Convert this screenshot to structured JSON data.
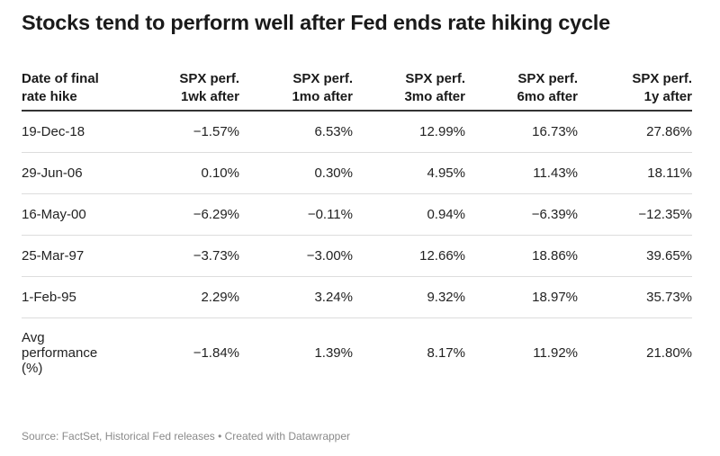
{
  "title": "Stocks tend to perform well after Fed ends rate hiking cycle",
  "source": "Source: FactSet, Historical Fed releases • Created with Datawrapper",
  "chart_data": {
    "type": "table",
    "columns": [
      [
        "Date of final",
        "rate hike"
      ],
      [
        "SPX perf.",
        "1wk after"
      ],
      [
        "SPX perf.",
        "1mo after"
      ],
      [
        "SPX perf.",
        "3mo after"
      ],
      [
        "SPX perf.",
        "6mo after"
      ],
      [
        "SPX perf.",
        "1y after"
      ]
    ],
    "rows": [
      [
        "19-Dec-18",
        "−1.57%",
        "6.53%",
        "12.99%",
        "16.73%",
        "27.86%"
      ],
      [
        "29-Jun-06",
        "0.10%",
        "0.30%",
        "4.95%",
        "11.43%",
        "18.11%"
      ],
      [
        "16-May-00",
        "−6.29%",
        "−0.11%",
        "0.94%",
        "−6.39%",
        "−12.35%"
      ],
      [
        "25-Mar-97",
        "−3.73%",
        "−3.00%",
        "12.66%",
        "18.86%",
        "39.65%"
      ],
      [
        "1-Feb-95",
        "2.29%",
        "3.24%",
        "9.32%",
        "18.97%",
        "35.73%"
      ]
    ],
    "summary_row": {
      "label": [
        "Avg",
        "performance",
        "(%)"
      ],
      "values": [
        "−1.84%",
        "1.39%",
        "8.17%",
        "11.92%",
        "21.80%"
      ]
    }
  }
}
